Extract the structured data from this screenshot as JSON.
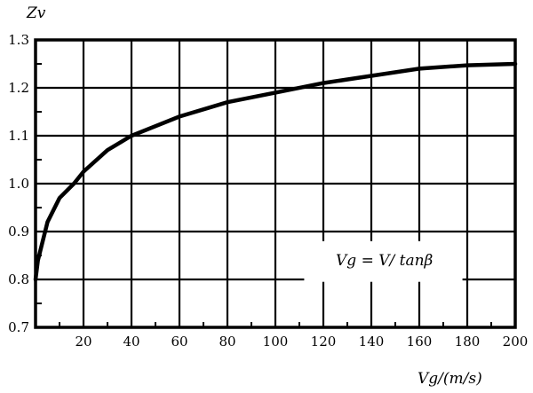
{
  "chart_data": {
    "type": "line",
    "title": "",
    "ylabel": "Zv",
    "xlabel": "Vg/(m/s)",
    "xlim": [
      0,
      200
    ],
    "ylim": [
      0.7,
      1.3
    ],
    "x_ticks": [
      20,
      40,
      60,
      80,
      100,
      120,
      140,
      160,
      180,
      200
    ],
    "x_tick_labels": [
      "20",
      "40",
      "60",
      "80",
      "100",
      "120",
      "140",
      "160",
      "180",
      "200"
    ],
    "y_ticks": [
      0.7,
      0.8,
      0.9,
      1.0,
      1.1,
      1.2,
      1.3
    ],
    "y_tick_labels": [
      "0.7",
      "0.8",
      "0.9",
      "1.0",
      "1.1",
      "1.2",
      "1.3"
    ],
    "grid": true,
    "annotation": "Vg = V/ tanβ",
    "series": [
      {
        "x": [
          0,
          1,
          2,
          5,
          10,
          16,
          20,
          30,
          40,
          60,
          80,
          100,
          120,
          140,
          160,
          180,
          200
        ],
        "y": [
          0.8,
          0.84,
          0.86,
          0.92,
          0.97,
          1.0,
          1.025,
          1.07,
          1.1,
          1.14,
          1.17,
          1.19,
          1.21,
          1.225,
          1.24,
          1.247,
          1.25
        ]
      }
    ]
  }
}
